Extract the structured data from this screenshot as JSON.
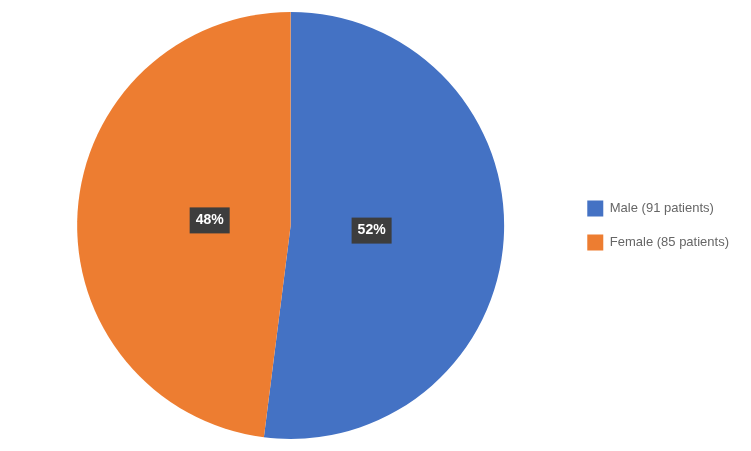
{
  "chart_data": {
    "type": "pie",
    "categories": [
      "Male (91 patients)",
      "Female (85 patients)"
    ],
    "values": [
      52,
      48
    ],
    "value_labels": [
      "52%",
      "48%"
    ],
    "data_labels": true,
    "colors": [
      "#4472C4",
      "#ED7D31"
    ],
    "legend": "right"
  }
}
